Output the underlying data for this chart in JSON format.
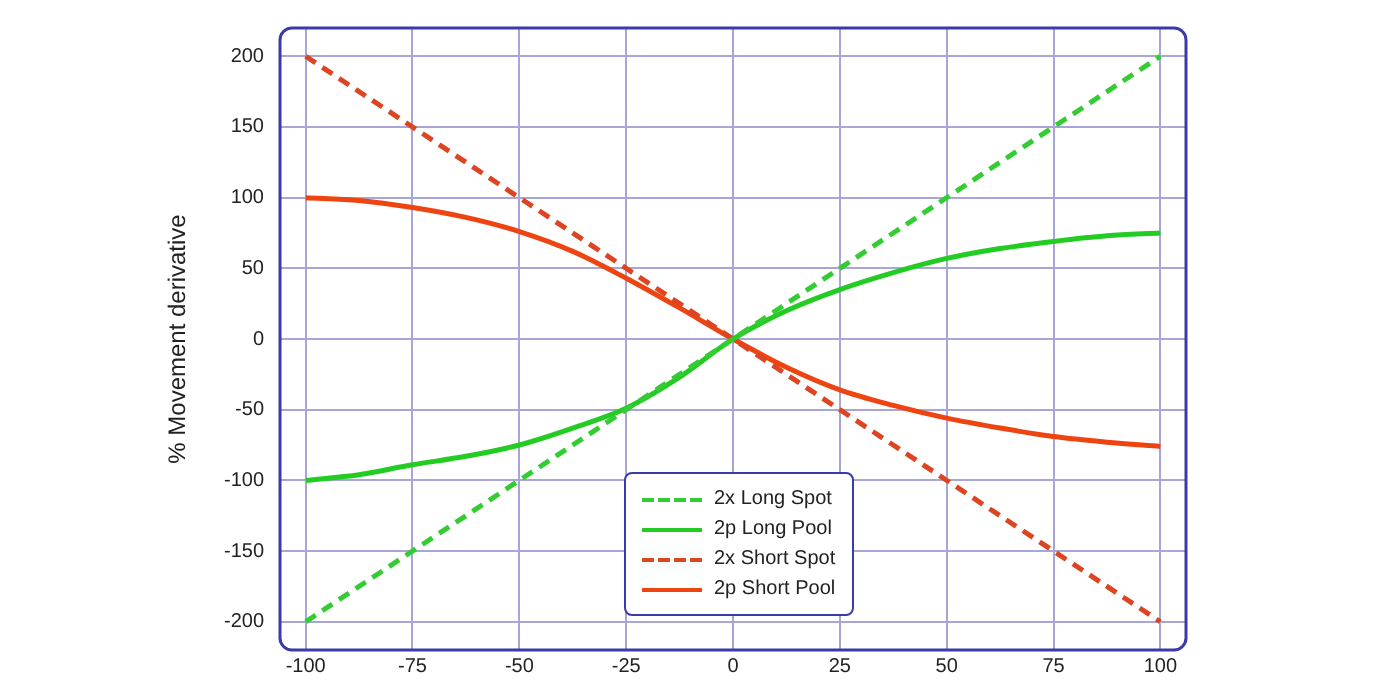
{
  "chart_data": {
    "type": "line",
    "ylabel": "% Movement derivative",
    "xlim": [
      -106,
      106
    ],
    "xticks": [
      -100,
      -75,
      -50,
      -25,
      0,
      25,
      50,
      75,
      100
    ],
    "ylim": [
      -220,
      220
    ],
    "yticks": [
      -200,
      -150,
      -100,
      -50,
      0,
      50,
      100,
      150,
      200
    ],
    "grid": true,
    "legend": "bottom",
    "marker": "none",
    "series": [
      {
        "name": "2x Long Spot",
        "color": "#33cc33",
        "line_style": "dashed",
        "x": [
          -100,
          100
        ],
        "values": [
          -200,
          200
        ]
      },
      {
        "name": "2p Long Pool",
        "color": "#22cc22",
        "line_style": "solid",
        "x": [
          -100,
          -87.5,
          -75,
          -62.5,
          -50,
          -37.5,
          -25,
          -12.5,
          0,
          12.5,
          25,
          37.5,
          50,
          62.5,
          75,
          87.5,
          100
        ],
        "values": [
          -100,
          -96,
          -89,
          -83,
          -75,
          -63,
          -49,
          -27,
          0,
          20,
          35,
          47,
          57,
          64,
          69,
          73,
          75
        ]
      },
      {
        "name": "2x Short Spot",
        "color": "#dd4422",
        "line_style": "dashed",
        "x": [
          -100,
          100
        ],
        "values": [
          200,
          -200
        ]
      },
      {
        "name": "2p Short Pool",
        "color": "#ee4411",
        "line_style": "solid",
        "x": [
          -100,
          -87.5,
          -75,
          -62.5,
          -50,
          -37.5,
          -25,
          -12.5,
          0,
          12.5,
          25,
          37.5,
          50,
          62.5,
          75,
          87.5,
          100
        ],
        "values": [
          100,
          98,
          93,
          86,
          76,
          62,
          43,
          22,
          0,
          -20,
          -36,
          -47,
          -56,
          -63,
          -69,
          -73,
          -76
        ]
      }
    ]
  }
}
